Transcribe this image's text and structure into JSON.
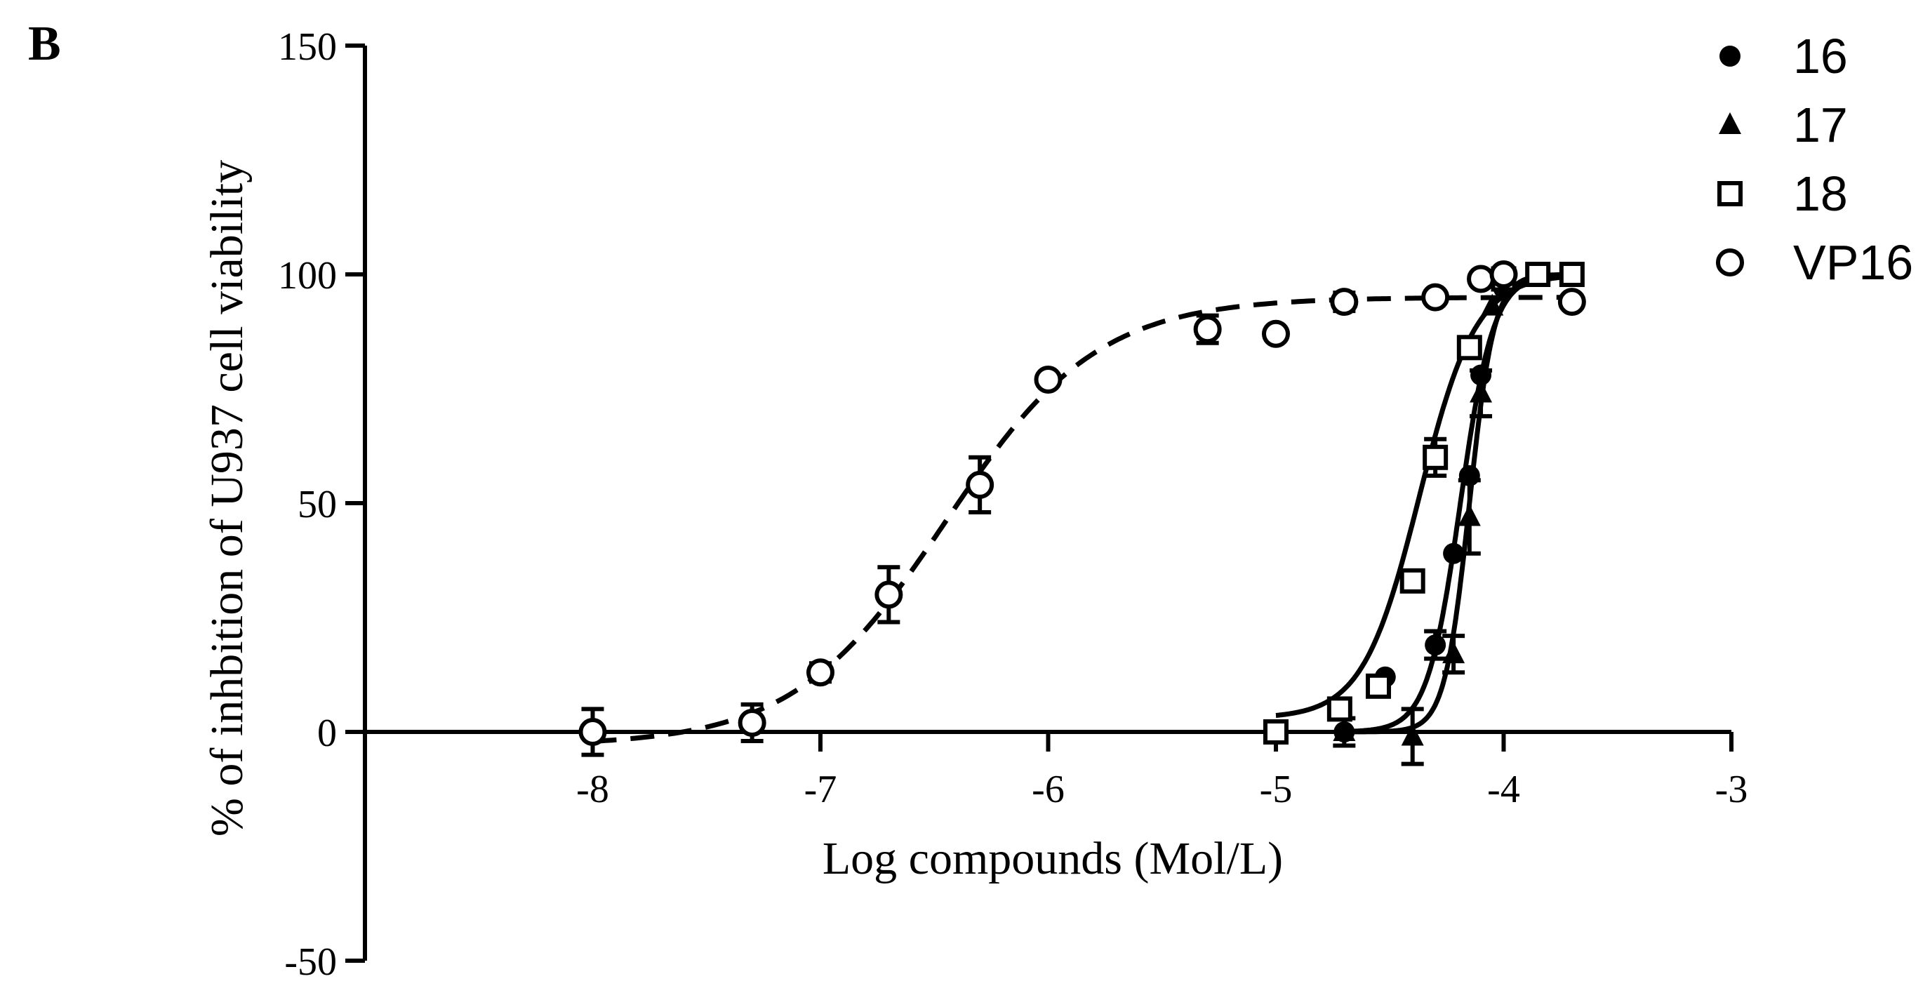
{
  "panel_label": "B",
  "chart_data": {
    "type": "scatter",
    "xlabel": "Log compounds (Mol/L)",
    "ylabel": "% of inhbition of U937 cell viability",
    "xlim": [
      -9,
      -3
    ],
    "ylim": [
      -50,
      150
    ],
    "x_ticks": [
      -8,
      -7,
      -6,
      -5,
      -4,
      -3
    ],
    "x_tick_labels": [
      "-8",
      "-7",
      "-6",
      "-5",
      "-4",
      "-3"
    ],
    "y_ticks": [
      -50,
      0,
      50,
      100,
      150
    ],
    "y_tick_labels": [
      "-50",
      "0",
      "50",
      "100",
      "150"
    ],
    "grid": false,
    "legend_position": "top-right",
    "series": [
      {
        "name": "16",
        "marker": "filled-circle",
        "line": "solid",
        "fit": {
          "bottom": 0,
          "top": 100,
          "logEC50": -4.19,
          "hill": 6
        },
        "points": [
          {
            "x": -4.7,
            "y": 0,
            "err": 3
          },
          {
            "x": -4.52,
            "y": 12,
            "err": 0
          },
          {
            "x": -4.3,
            "y": 19,
            "err": 3
          },
          {
            "x": -4.22,
            "y": 39,
            "err": 0
          },
          {
            "x": -4.15,
            "y": 56,
            "err": 0
          },
          {
            "x": -4.1,
            "y": 78,
            "err": 0
          },
          {
            "x": -4.0,
            "y": 97,
            "err": 0
          },
          {
            "x": -3.85,
            "y": 100,
            "err": 0
          },
          {
            "x": -3.7,
            "y": 100,
            "err": 0
          }
        ]
      },
      {
        "name": "17",
        "marker": "filled-triangle",
        "line": "solid",
        "fit": {
          "bottom": 0,
          "top": 100,
          "logEC50": -4.15,
          "hill": 8
        },
        "points": [
          {
            "x": -4.7,
            "y": 0,
            "err": 0
          },
          {
            "x": -4.4,
            "y": -1,
            "err": 6
          },
          {
            "x": -4.22,
            "y": 17,
            "err": 4
          },
          {
            "x": -4.15,
            "y": 47,
            "err": 8
          },
          {
            "x": -4.1,
            "y": 74,
            "err": 5
          },
          {
            "x": -4.05,
            "y": 93,
            "err": 0
          },
          {
            "x": -3.85,
            "y": 100,
            "err": 0
          },
          {
            "x": -3.7,
            "y": 100,
            "err": 0
          }
        ]
      },
      {
        "name": "18",
        "marker": "open-square",
        "line": "solid",
        "fit": {
          "bottom": 3,
          "top": 100,
          "logEC50": -4.37,
          "hill": 3.5
        },
        "points": [
          {
            "x": -5.0,
            "y": 0,
            "err": 0
          },
          {
            "x": -4.72,
            "y": 5,
            "err": 0
          },
          {
            "x": -4.55,
            "y": 10,
            "err": 0
          },
          {
            "x": -4.4,
            "y": 33,
            "err": 0
          },
          {
            "x": -4.3,
            "y": 60,
            "err": 4
          },
          {
            "x": -4.15,
            "y": 84,
            "err": 0
          },
          {
            "x": -4.0,
            "y": 99,
            "err": 0
          },
          {
            "x": -3.85,
            "y": 100,
            "err": 0
          },
          {
            "x": -3.7,
            "y": 100,
            "err": 0
          }
        ]
      },
      {
        "name": "VP16",
        "marker": "open-circle",
        "line": "dashed",
        "fit": {
          "bottom": -3,
          "top": 95,
          "logEC50": -6.45,
          "hill": 1.3
        },
        "points": [
          {
            "x": -8.0,
            "y": 0,
            "err": 5
          },
          {
            "x": -7.3,
            "y": 2,
            "err": 4
          },
          {
            "x": -7.0,
            "y": 13,
            "err": 2
          },
          {
            "x": -6.7,
            "y": 30,
            "err": 6
          },
          {
            "x": -6.3,
            "y": 54,
            "err": 6
          },
          {
            "x": -6.0,
            "y": 77,
            "err": 0
          },
          {
            "x": -5.3,
            "y": 88,
            "err": 3
          },
          {
            "x": -5.0,
            "y": 87,
            "err": 0
          },
          {
            "x": -4.7,
            "y": 94,
            "err": 2
          },
          {
            "x": -4.3,
            "y": 95,
            "err": 0
          },
          {
            "x": -4.1,
            "y": 99,
            "err": 0
          },
          {
            "x": -4.0,
            "y": 100,
            "err": 0
          },
          {
            "x": -3.7,
            "y": 94,
            "err": 0
          }
        ]
      }
    ]
  }
}
